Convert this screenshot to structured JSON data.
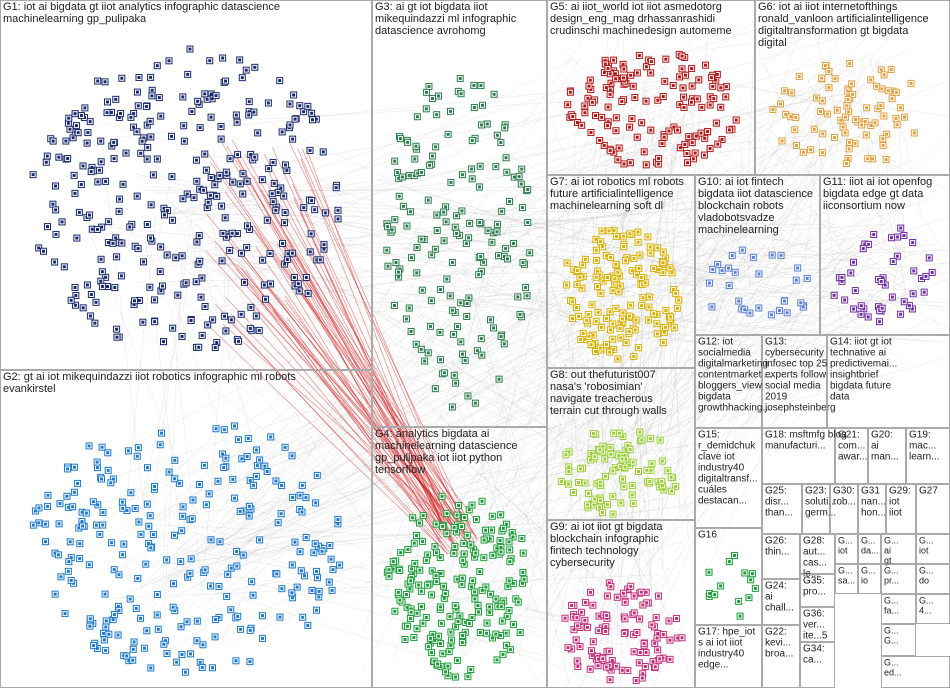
{
  "groups": [
    {
      "lines": [
        "G1: iot ai bigdata gt iiot analytics infographic datascience",
        "machinelearning gp_pulipaka"
      ]
    },
    {
      "lines": [
        "G2: gt ai iot mikequindazzi iiot robotics infographic ml robots",
        "evankirstel"
      ]
    },
    {
      "lines": [
        "G3: ai gt iot bigdata iiot",
        "mikequindazzi ml infographic",
        "datascience avrohomg"
      ]
    },
    {
      "lines": [
        "G4: analytics bigdata ai",
        "machinelearning datascience",
        "gp_pulipaka iot iiot python",
        "tensorflow"
      ]
    },
    {
      "lines": [
        "G5: ai iiot_world iot iiot asmedotorg",
        "design_eng_mag drhassanrashidi",
        "crudinschi machinedesign automeme"
      ]
    },
    {
      "lines": [
        "G6: iot ai iiot internetofthings",
        "ronald_vanloon artificialintelligence",
        "digitaltransformation gt bigdata",
        "digital"
      ]
    },
    {
      "lines": [
        "G7: ai iot robotics ml robots",
        "future artificialintelligence",
        "machinelearning soft dl"
      ]
    },
    {
      "lines": [
        "G10: ai iot fintech",
        "bigdata iiot datascience",
        "blockchain robots",
        "vladobotsvadze",
        "machinelearning"
      ]
    },
    {
      "lines": [
        "G11: iiot ai iot openfog",
        "bigdata edge gt data",
        "iiconsortium now"
      ]
    },
    {
      "lines": [
        "G8: out thefuturist007",
        "nasa's 'robosimian'",
        "navigate treacherous",
        "terrain cut through walls"
      ]
    },
    {
      "lines": [
        "G9: ai iot iiot gt bigdata",
        "blockchain infographic",
        "fintech technology",
        "cybersecurity"
      ]
    },
    {
      "lines": [
        "G12: iot",
        "socialmedia",
        "digitalmarketing",
        "contentmarketi...",
        "bloggers_view",
        "bigdata",
        "growthhacking..."
      ]
    },
    {
      "lines": [
        "G13:",
        "cybersecurity",
        "infosec top 25",
        "experts follow",
        "social media",
        "2019",
        "josephsteinberg"
      ]
    },
    {
      "lines": [
        "G14: iiot gt iot",
        "technative ai",
        "predictivemai...",
        "insightbrief",
        "bigdata future",
        "data"
      ]
    },
    {
      "lines": [
        "G15:",
        "r_demidchuk",
        "clave iot",
        "industry40",
        "digitaltransf...",
        "cuáles",
        "destacan..."
      ]
    },
    {
      "lines": [
        "G18: msftmfg blog",
        "manufacturi..."
      ]
    },
    {
      "lines": [
        "G21:",
        "com...",
        "awar..."
      ]
    },
    {
      "lines": [
        "G20:",
        "ai",
        "man..."
      ]
    },
    {
      "lines": [
        "G19:",
        "mac...",
        "learn..."
      ]
    },
    {
      "lines": [
        "G25:",
        "disr...",
        "than..."
      ]
    },
    {
      "lines": [
        "G23:",
        "soluti...",
        "germ..."
      ]
    },
    {
      "lines": [
        "G30:",
        "rob..."
      ]
    },
    {
      "lines": [
        "G31",
        "nan...",
        "hon..."
      ]
    },
    {
      "lines": [
        "G29:",
        "iot",
        "iiot"
      ]
    },
    {
      "lines": [
        "G27"
      ]
    },
    {
      "lines": [
        "G16"
      ]
    },
    {
      "lines": [
        "G26:",
        "thin..."
      ]
    },
    {
      "lines": [
        "G28:",
        "aut...",
        "cas...",
        "le..."
      ]
    },
    {
      "lines": [
        "G24:",
        "ai",
        "chall..."
      ]
    },
    {
      "lines": [
        "G35:",
        "pro..."
      ]
    },
    {
      "lines": [
        "G36:",
        "ver...",
        "ite...5"
      ]
    },
    {
      "lines": [
        "G22:",
        "kevi...",
        "broa..."
      ]
    },
    {
      "lines": [
        "G34:",
        "ca..."
      ]
    },
    {
      "lines": [
        "G17: hpe_iot",
        "s ai iot iiot",
        "industry40",
        "edge..."
      ]
    },
    {
      "lines": [
        "G...",
        "iot"
      ]
    },
    {
      "lines": [
        "G...",
        "da..."
      ]
    },
    {
      "lines": [
        "G...",
        "ai",
        "gt"
      ]
    },
    {
      "lines": [
        "G...",
        "sa..."
      ]
    },
    {
      "lines": [
        "G...",
        "io"
      ]
    },
    {
      "lines": [
        "G...",
        "pr..."
      ]
    },
    {
      "lines": [
        "G...",
        "iot"
      ]
    },
    {
      "lines": [
        "G...",
        "do"
      ]
    },
    {
      "lines": [
        "G...",
        "fa..."
      ]
    },
    {
      "lines": [
        "G...",
        "4..."
      ]
    },
    {
      "lines": [
        "G...",
        "G..."
      ]
    },
    {
      "lines": [
        "G...",
        "ed..."
      ]
    }
  ]
}
